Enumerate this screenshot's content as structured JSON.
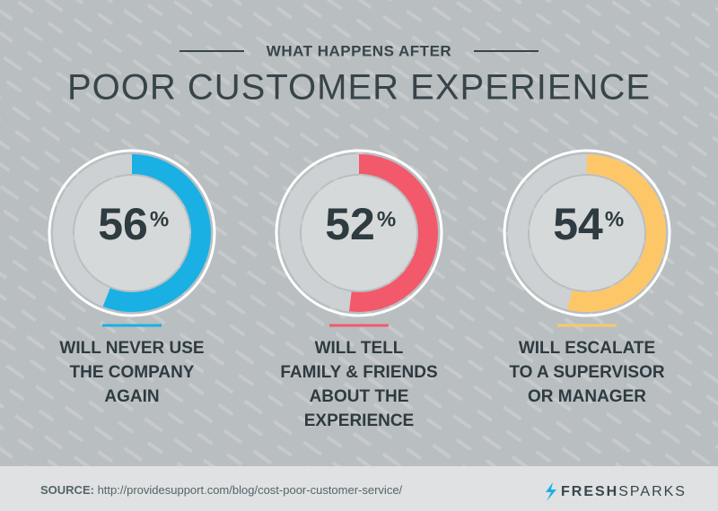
{
  "header": {
    "subtitle": "WHAT HAPPENS AFTER",
    "title": "POOR CUSTOMER EXPERIENCE"
  },
  "chart_data": [
    {
      "type": "donut",
      "value": 56,
      "unit": "%",
      "ylim": [
        0,
        100
      ],
      "color": "#1ab0e3",
      "label": [
        "WILL NEVER USE",
        "THE COMPANY",
        "AGAIN"
      ]
    },
    {
      "type": "donut",
      "value": 52,
      "unit": "%",
      "ylim": [
        0,
        100
      ],
      "color": "#f2596a",
      "label": [
        "WILL TELL",
        "FAMILY & FRIENDS",
        "ABOUT THE",
        "EXPERIENCE"
      ]
    },
    {
      "type": "donut",
      "value": 54,
      "unit": "%",
      "ylim": [
        0,
        100
      ],
      "color": "#fdc768",
      "label": [
        "WILL ESCALATE",
        "TO A SUPERVISOR",
        "OR MANAGER"
      ]
    }
  ],
  "footer": {
    "source_label": "SOURCE:",
    "source_url": "http://providesupport.com/blog/cost-poor-customer-service/",
    "brand_bold": "FRESH",
    "brand_light": "SPARKS"
  }
}
